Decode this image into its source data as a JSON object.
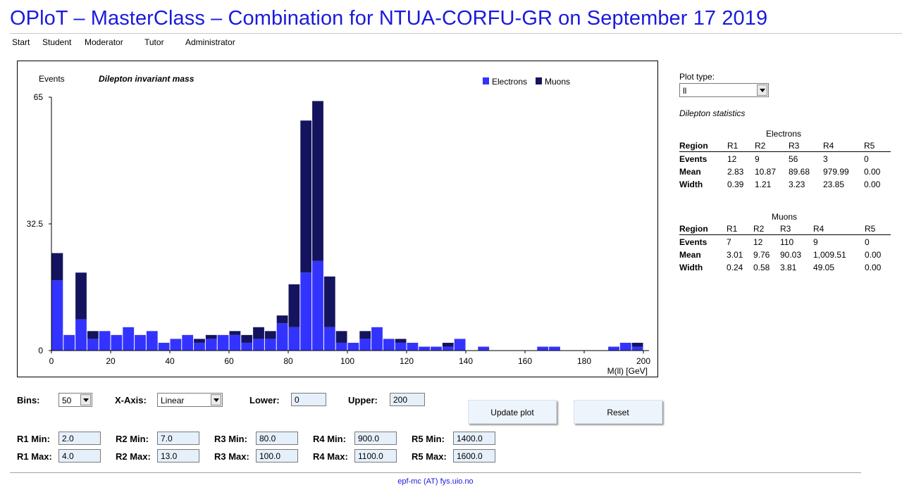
{
  "page": {
    "title": "OPloT – MasterClass – Combination for NTUA-CORFU-GR on September 17 2019",
    "footer": "epf-mc (AT) fys.uio.no"
  },
  "nav": [
    "Start",
    "Student",
    "Moderator",
    "Tutor",
    "Administrator"
  ],
  "colors": {
    "electrons": "#3333ff",
    "muons": "#14145e",
    "title": "#1a1adc"
  },
  "chart_data": {
    "type": "bar",
    "stacked": true,
    "title": "Dilepton invariant mass",
    "ylabel": "Events",
    "xlabel": "M(ll) [GeV]",
    "xlim": [
      0,
      200
    ],
    "ylim": [
      0,
      65
    ],
    "bin_width": 4,
    "x_ticks": [
      0,
      20,
      40,
      60,
      80,
      100,
      120,
      140,
      160,
      180,
      200
    ],
    "y_ticks": [
      0,
      32.5,
      65
    ],
    "legend_position": "top-right",
    "series": [
      {
        "name": "Electrons",
        "color": "#3333ff",
        "values": [
          18,
          4,
          8,
          3,
          5,
          4,
          6,
          4,
          5,
          2,
          3,
          4,
          2,
          3,
          4,
          4,
          2,
          3,
          3,
          7,
          6,
          20,
          23,
          6,
          2,
          2,
          3,
          6,
          3,
          2,
          2,
          1,
          1,
          1,
          3,
          0,
          1,
          0,
          0,
          0,
          0,
          1,
          1,
          0,
          0,
          0,
          0,
          1,
          2,
          1
        ]
      },
      {
        "name": "Muons",
        "color": "#14145e",
        "values": [
          7,
          0,
          12,
          2,
          0,
          0,
          0,
          0,
          0,
          0,
          0,
          0,
          1,
          1,
          0,
          1,
          2,
          3,
          2,
          2,
          11,
          39,
          41,
          13,
          3,
          0,
          2,
          0,
          0,
          1,
          0,
          0,
          0,
          1,
          0,
          0,
          0,
          0,
          0,
          0,
          0,
          0,
          0,
          0,
          0,
          0,
          0,
          0,
          0,
          1
        ]
      }
    ]
  },
  "controls": {
    "bins_label": "Bins:",
    "bins_value": "50",
    "xaxis_label": "X-Axis:",
    "xaxis_value": "Linear",
    "lower_label": "Lower:",
    "lower_value": "0",
    "upper_label": "Upper:",
    "upper_value": "200",
    "update_button": "Update plot",
    "reset_button": "Reset"
  },
  "regions": [
    {
      "min_label": "R1 Min:",
      "min": "2.0",
      "max_label": "R1 Max:",
      "max": "4.0"
    },
    {
      "min_label": "R2 Min:",
      "min": "7.0",
      "max_label": "R2 Max:",
      "max": "13.0"
    },
    {
      "min_label": "R3 Min:",
      "min": "80.0",
      "max_label": "R3 Max:",
      "max": "100.0"
    },
    {
      "min_label": "R4 Min:",
      "min": "900.0",
      "max_label": "R4 Max:",
      "max": "1100.0"
    },
    {
      "min_label": "R5 Min:",
      "min": "1400.0",
      "max_label": "R5 Max:",
      "max": "1600.0"
    }
  ],
  "side": {
    "plot_type_label": "Plot type:",
    "plot_type_value": "ll",
    "stats_title": "Dilepton statistics",
    "electrons": {
      "caption": "Electrons",
      "header": [
        "Region",
        "R1",
        "R2",
        "R3",
        "R4",
        "R5"
      ],
      "rows": [
        [
          "Events",
          "12",
          "9",
          "56",
          "3",
          "0"
        ],
        [
          "Mean",
          "2.83",
          "10.87",
          "89.68",
          "979.99",
          "0.00"
        ],
        [
          "Width",
          "0.39",
          "1.21",
          "3.23",
          "23.85",
          "0.00"
        ]
      ]
    },
    "muons": {
      "caption": "Muons",
      "header": [
        "Region",
        "R1",
        "R2",
        "R3",
        "R4",
        "R5"
      ],
      "rows": [
        [
          "Events",
          "7",
          "12",
          "110",
          "9",
          "0"
        ],
        [
          "Mean",
          "3.01",
          "9.76",
          "90.03",
          "1,009.51",
          "0.00"
        ],
        [
          "Width",
          "0.24",
          "0.58",
          "3.81",
          "49.05",
          "0.00"
        ]
      ]
    }
  }
}
